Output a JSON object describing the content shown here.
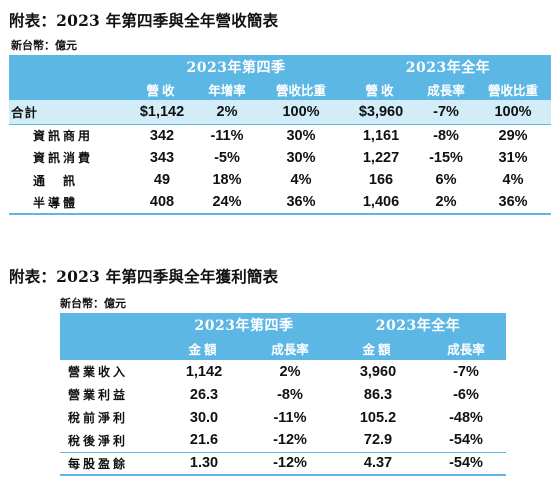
{
  "revenue": {
    "title": "附表：2023 年第四季與全年營收簡表",
    "unit": "新台幣：億元",
    "group_q4": "2023年第四季",
    "group_fy": "2023年全年",
    "cols_q4": [
      "營收",
      "年增率",
      "營收比重"
    ],
    "cols_fy": [
      "營收",
      "成長率",
      "營收比重"
    ],
    "total": {
      "label": "合計",
      "values": [
        "$1,142",
        "2%",
        "100%",
        "$3,960",
        "-7%",
        "100%"
      ]
    },
    "rows": [
      {
        "label": "資訊商用",
        "values": [
          "342",
          "-11%",
          "30%",
          "1,161",
          "-8%",
          "29%"
        ]
      },
      {
        "label": "資訊消費",
        "values": [
          "343",
          "-5%",
          "30%",
          "1,227",
          "-15%",
          "31%"
        ]
      },
      {
        "label": "通　訊",
        "values": [
          "49",
          "18%",
          "4%",
          "166",
          "6%",
          "4%"
        ]
      },
      {
        "label": "半導體",
        "values": [
          "408",
          "24%",
          "36%",
          "1,406",
          "2%",
          "36%"
        ]
      }
    ]
  },
  "profit": {
    "title": "附表：2023 年第四季與全年獲利簡表",
    "unit": "新台幣：億元",
    "group_q4": "2023年第四季",
    "group_fy": "2023年全年",
    "cols_q4": [
      "金額",
      "成長率"
    ],
    "cols_fy": [
      "金額",
      "成長率"
    ],
    "rows": [
      {
        "label": "營業收入",
        "values": [
          "1,142",
          "2%",
          "3,960",
          "-7%"
        ]
      },
      {
        "label": "營業利益",
        "values": [
          "26.3",
          "-8%",
          "86.3",
          "-6%"
        ]
      },
      {
        "label": "稅前淨利",
        "values": [
          "30.0",
          "-11%",
          "105.2",
          "-48%"
        ]
      },
      {
        "label": "稅後淨利",
        "values": [
          "21.6",
          "-12%",
          "72.9",
          "-54%"
        ]
      },
      {
        "label": "每股盈餘",
        "values": [
          "1.30",
          "-12%",
          "4.37",
          "-54%"
        ]
      }
    ]
  },
  "colors": {
    "header_bg": "#5db7e4",
    "total_bg": "#d2edf8",
    "header_text": "#ffffff"
  }
}
